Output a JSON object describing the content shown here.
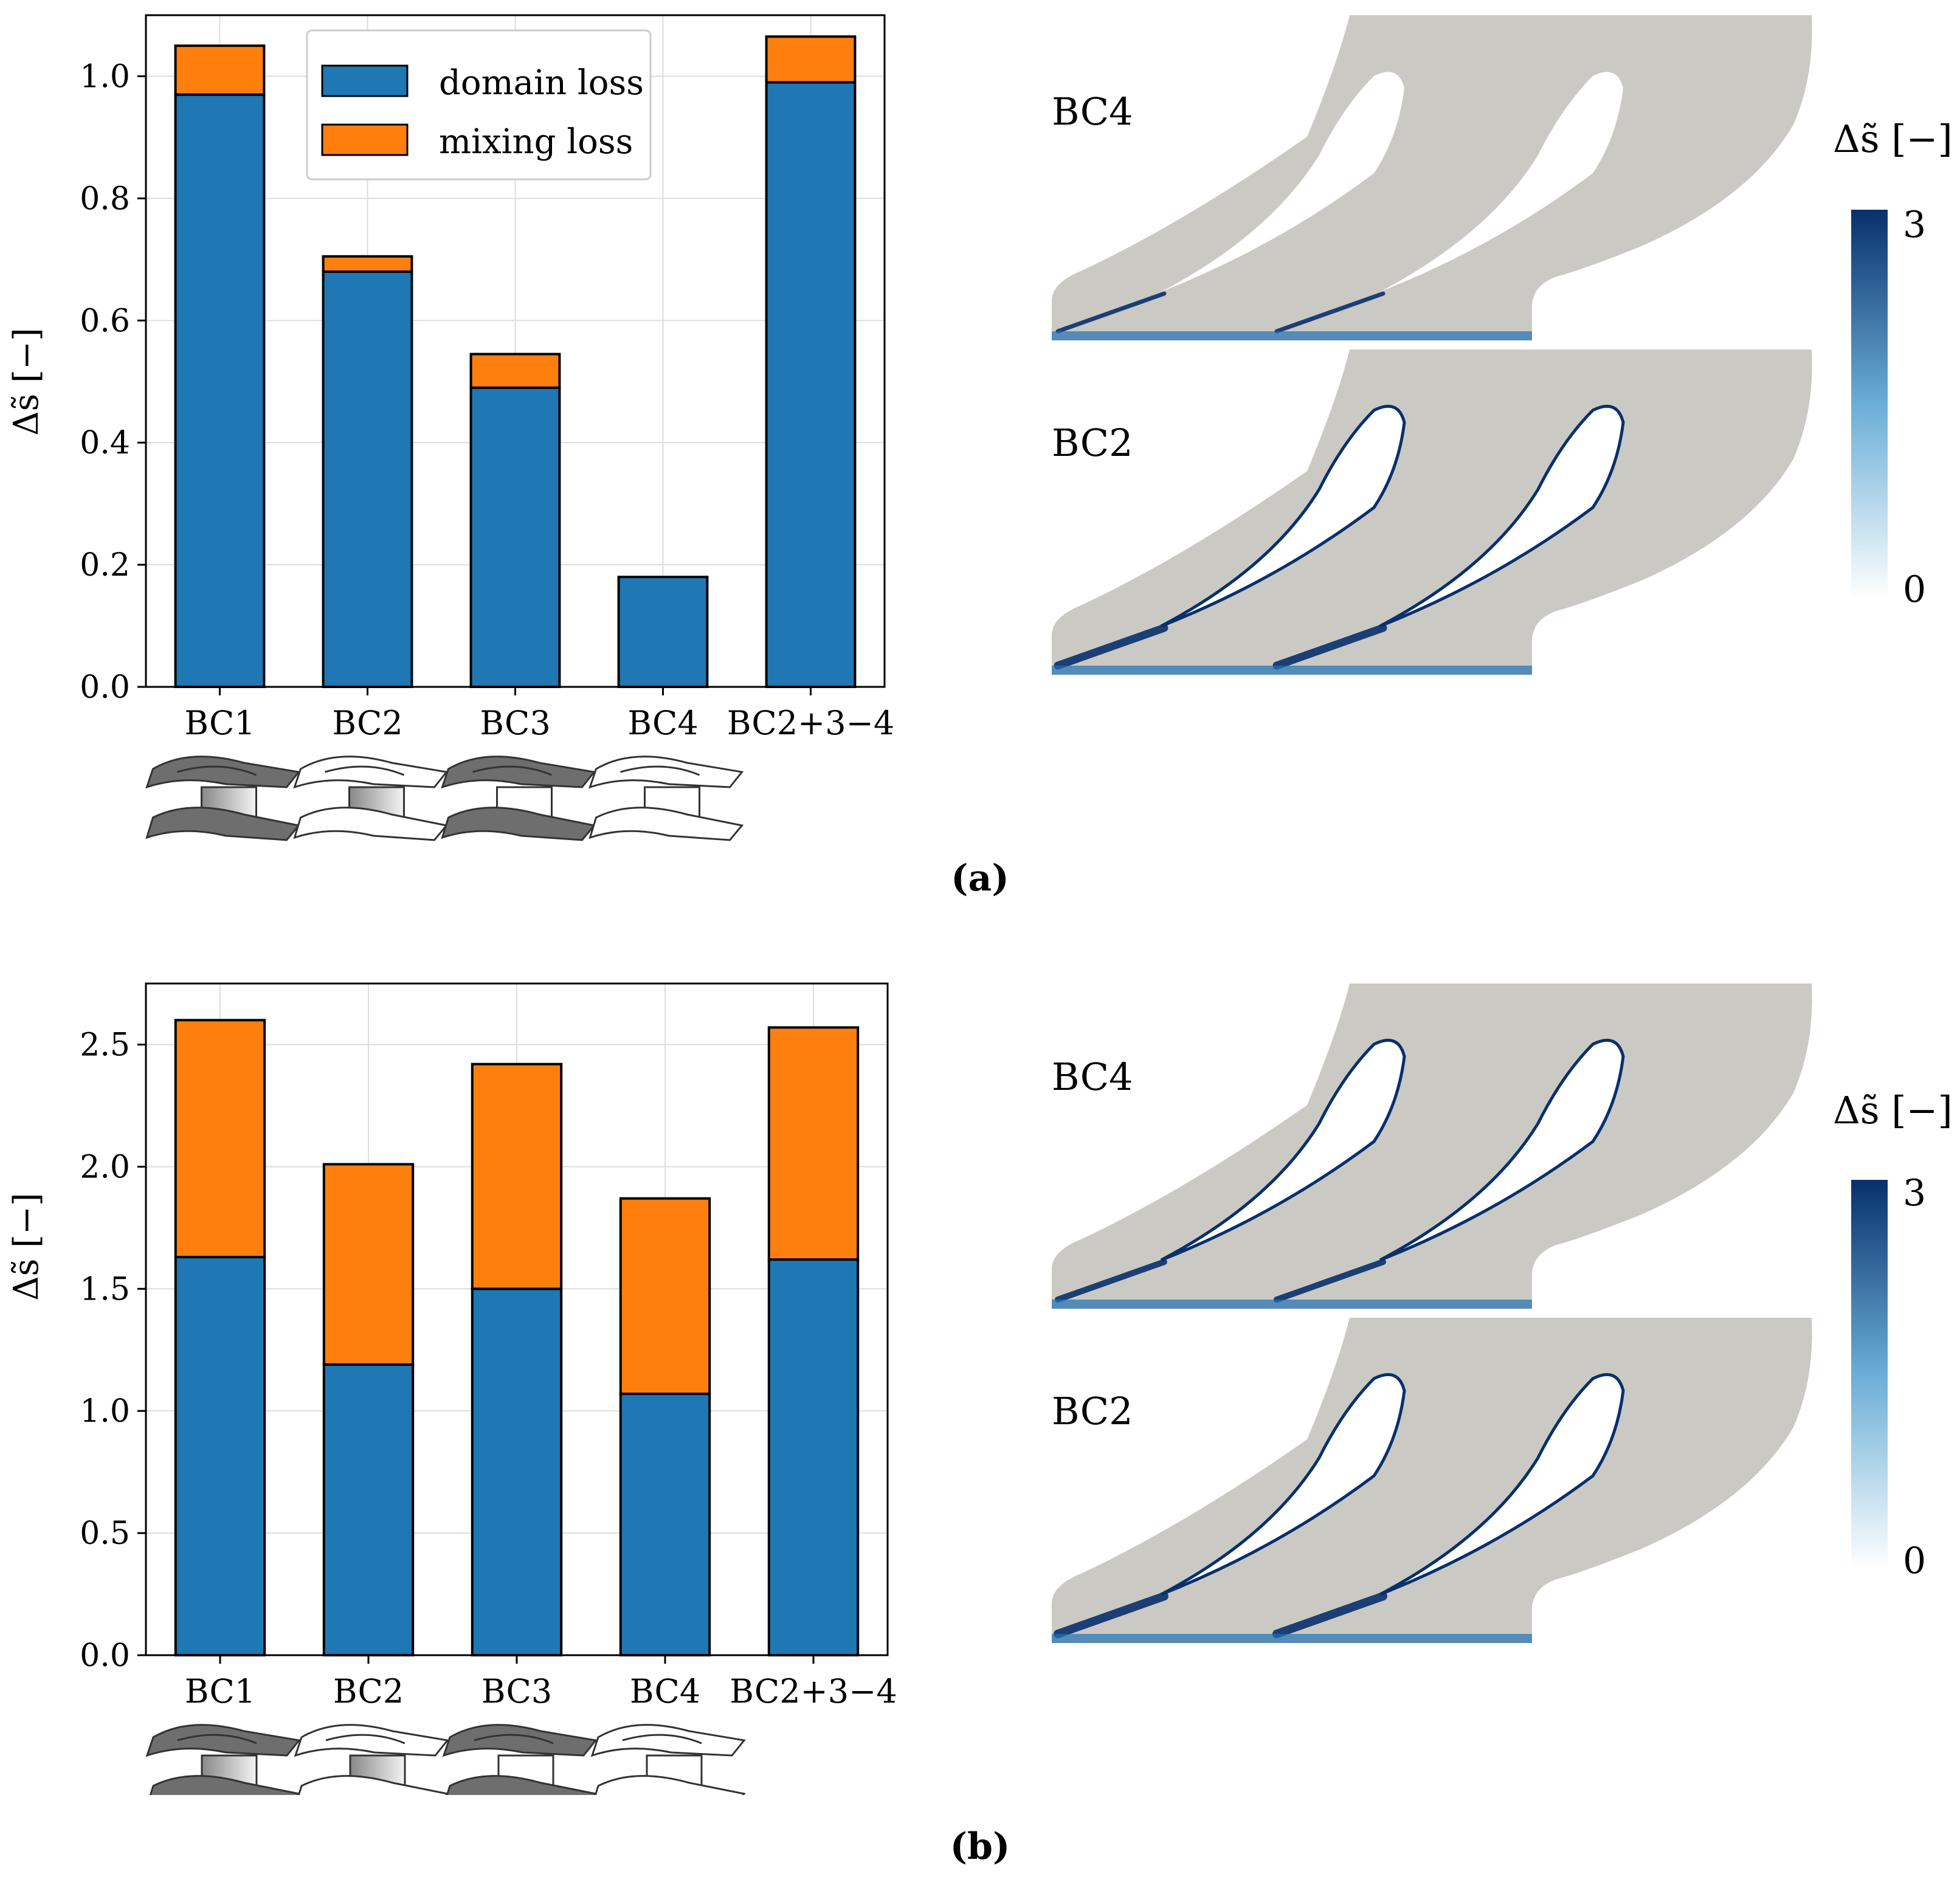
{
  "chart_data": [
    {
      "type": "bar",
      "stacked": true,
      "categories": [
        "BC1",
        "BC2",
        "BC3",
        "BC4",
        "BC2+3−4"
      ],
      "series": [
        {
          "name": "domain loss",
          "color": "#1f77b4",
          "values": [
            0.97,
            0.68,
            0.49,
            0.18,
            0.99
          ]
        },
        {
          "name": "mixing loss",
          "color": "#ff7f0e",
          "values": [
            0.08,
            0.025,
            0.055,
            0.0,
            0.075
          ]
        }
      ],
      "ylabel": "Δs̃ [−]",
      "ylim": [
        0,
        1.1
      ],
      "yticks": [
        0.0,
        0.2,
        0.4,
        0.6,
        0.8,
        1.0
      ],
      "ytick_labels": [
        "0.0",
        "0.2",
        "0.4",
        "0.6",
        "0.8",
        "1.0"
      ],
      "grid": true,
      "legend_position": "top-center"
    },
    {
      "type": "bar",
      "stacked": true,
      "categories": [
        "BC1",
        "BC2",
        "BC3",
        "BC4",
        "BC2+3−4"
      ],
      "series": [
        {
          "name": "domain loss",
          "color": "#1f77b4",
          "values": [
            1.63,
            1.19,
            1.5,
            1.07,
            1.62
          ]
        },
        {
          "name": "mixing loss",
          "color": "#ff7f0e",
          "values": [
            0.97,
            0.82,
            0.92,
            0.8,
            0.95
          ]
        }
      ],
      "ylabel": "Δs̃ [−]",
      "ylim": [
        0,
        2.75
      ],
      "yticks": [
        0.0,
        0.5,
        1.0,
        1.5,
        2.0,
        2.5
      ],
      "ytick_labels": [
        "0.0",
        "0.5",
        "1.0",
        "1.5",
        "2.0",
        "2.5"
      ],
      "grid": true
    }
  ],
  "panels": [
    {
      "caption": "(a)",
      "contour_labels": [
        "BC4",
        "BC2"
      ],
      "colorbar": {
        "title": "Δs̃ [−]",
        "max_label": "3",
        "min_label": "0",
        "color_low": "#ffffff",
        "color_high": "#08306b"
      }
    },
    {
      "caption": "(b)",
      "contour_labels": [
        "BC4",
        "BC2"
      ],
      "colorbar": {
        "title": "Δs̃ [−]",
        "max_label": "3",
        "min_label": "0",
        "color_low": "#ffffff",
        "color_high": "#08306b"
      }
    }
  ],
  "colors": {
    "domain": "#1f77b4",
    "mixing": "#ff7f0e",
    "solid": "#cbc9c4",
    "wake": "#08306b"
  }
}
